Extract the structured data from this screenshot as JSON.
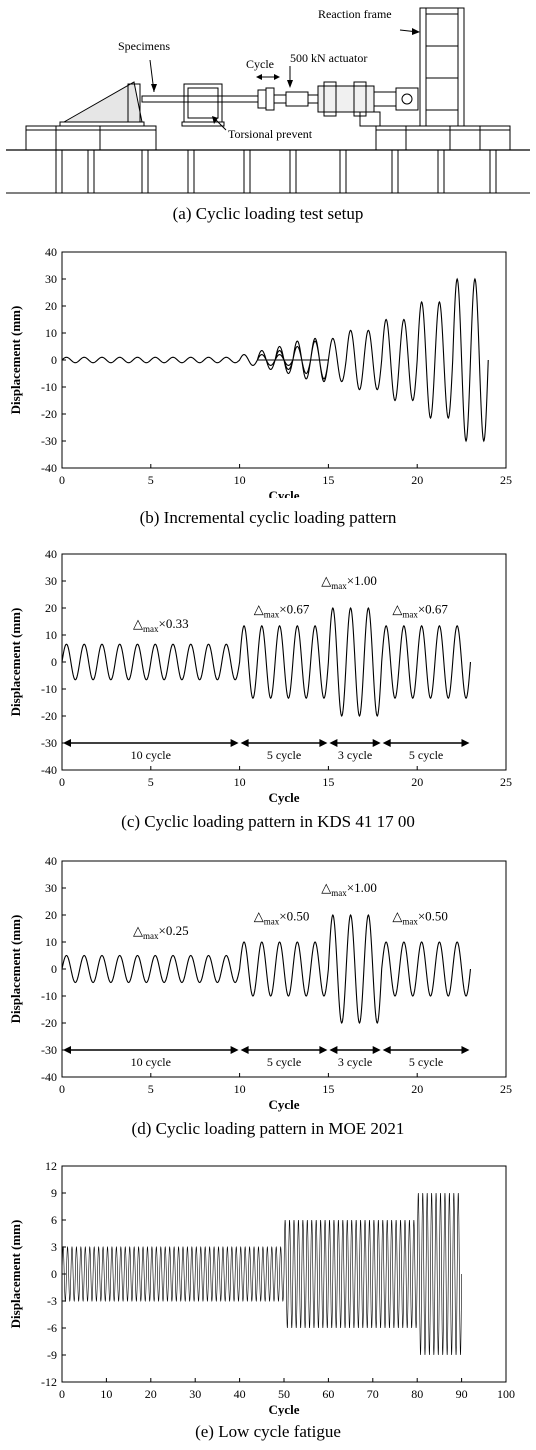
{
  "setup": {
    "caption": "(a) Cyclic loading test setup",
    "labels": {
      "reaction_frame": "Reaction frame",
      "specimens": "Specimens",
      "cycle": "Cycle",
      "actuator": "500 kN actuator",
      "torsional": "Torsional prevent"
    }
  },
  "chart_data": [
    {
      "type": "line",
      "caption": "(b) Incremental cyclic loading pattern",
      "xlabel": "Cycle",
      "ylabel": "Displacement (mm)",
      "xlim": [
        0,
        25
      ],
      "ylim": [
        -40,
        40
      ],
      "xticks": [
        "0",
        "5",
        "10",
        "15",
        "20",
        "25"
      ],
      "yticks": [
        "-40",
        "-30",
        "-20",
        "-10",
        "0",
        "10",
        "20",
        "30",
        "40"
      ],
      "groups": [
        {
          "amplitude": 1,
          "cycles": 10,
          "start": 0
        },
        {
          "amplitude": 2,
          "cycles": 3,
          "start": 10
        },
        {
          "amplitude": 3.5,
          "cycles": 2,
          "start": 11
        },
        {
          "amplitude": 5,
          "cycles": 2,
          "start": 12
        },
        {
          "amplitude": 7,
          "cycles": 2,
          "start": 13
        },
        {
          "amplitude": 8,
          "cycles": 2,
          "start": 14
        },
        {
          "amplitude": 11,
          "cycles": 2,
          "start": 16
        },
        {
          "amplitude": 15,
          "cycles": 2,
          "start": 18
        },
        {
          "amplitude": 21.5,
          "cycles": 2,
          "start": 20
        },
        {
          "amplitude": 30,
          "cycles": 2,
          "start": 22
        }
      ],
      "annotations": [],
      "ranges": []
    },
    {
      "type": "line",
      "caption": "(c) Cyclic loading pattern in KDS 41 17 00",
      "xlabel": "Cycle",
      "ylabel": "Displacement (mm)",
      "xlim": [
        0,
        25
      ],
      "ylim": [
        -40,
        40
      ],
      "xticks": [
        "0",
        "5",
        "10",
        "15",
        "20",
        "25"
      ],
      "yticks": [
        "-40",
        "-30",
        "-20",
        "-10",
        "0",
        "10",
        "20",
        "30",
        "40"
      ],
      "groups": [
        {
          "amplitude": 6.6,
          "cycles": 10,
          "start": 0
        },
        {
          "amplitude": 13.4,
          "cycles": 5,
          "start": 10
        },
        {
          "amplitude": 20,
          "cycles": 3,
          "start": 15
        },
        {
          "amplitude": 13.4,
          "cycles": 5,
          "start": 18
        }
      ],
      "annotations": [
        {
          "x": 4,
          "y": 14,
          "base": "△",
          "sub": "max",
          "text": "×0.33"
        },
        {
          "x": 10.8,
          "y": 19.5,
          "base": "△",
          "sub": "max",
          "text": "×0.67"
        },
        {
          "x": 14.6,
          "y": 30,
          "base": "△",
          "sub": "max",
          "text": "×1.00"
        },
        {
          "x": 18.6,
          "y": 19.5,
          "base": "△",
          "sub": "max",
          "text": "×0.67"
        }
      ],
      "ranges": [
        {
          "x1": 0,
          "x2": 10,
          "label": "10 cycle"
        },
        {
          "x1": 10,
          "x2": 15,
          "label": "5 cycle"
        },
        {
          "x1": 15,
          "x2": 18,
          "label": "3 cycle"
        },
        {
          "x1": 18,
          "x2": 23,
          "label": "5 cycle"
        }
      ]
    },
    {
      "type": "line",
      "caption": "(d) Cyclic loading pattern in MOE 2021",
      "xlabel": "Cycle",
      "ylabel": "Displacement (mm)",
      "xlim": [
        0,
        25
      ],
      "ylim": [
        -40,
        40
      ],
      "xticks": [
        "0",
        "5",
        "10",
        "15",
        "20",
        "25"
      ],
      "yticks": [
        "-40",
        "-30",
        "-20",
        "-10",
        "0",
        "10",
        "20",
        "30",
        "40"
      ],
      "groups": [
        {
          "amplitude": 5,
          "cycles": 10,
          "start": 0
        },
        {
          "amplitude": 10,
          "cycles": 5,
          "start": 10
        },
        {
          "amplitude": 20,
          "cycles": 3,
          "start": 15
        },
        {
          "amplitude": 10,
          "cycles": 5,
          "start": 18
        }
      ],
      "annotations": [
        {
          "x": 4,
          "y": 14,
          "base": "△",
          "sub": "max",
          "text": "×0.25"
        },
        {
          "x": 10.8,
          "y": 19.5,
          "base": "△",
          "sub": "max",
          "text": "×0.50"
        },
        {
          "x": 14.6,
          "y": 30,
          "base": "△",
          "sub": "max",
          "text": "×1.00"
        },
        {
          "x": 18.6,
          "y": 19.5,
          "base": "△",
          "sub": "max",
          "text": "×0.50"
        }
      ],
      "ranges": [
        {
          "x1": 0,
          "x2": 10,
          "label": "10 cycle"
        },
        {
          "x1": 10,
          "x2": 15,
          "label": "5 cycle"
        },
        {
          "x1": 15,
          "x2": 18,
          "label": "3 cycle"
        },
        {
          "x1": 18,
          "x2": 23,
          "label": "5 cycle"
        }
      ]
    },
    {
      "type": "line",
      "caption": "(e) Low cycle fatigue",
      "xlabel": "Cycle",
      "ylabel": "Displacement (mm)",
      "xlim": [
        0,
        100
      ],
      "ylim": [
        -12,
        12
      ],
      "xticks": [
        "0",
        "10",
        "20",
        "30",
        "40",
        "50",
        "60",
        "70",
        "80",
        "90",
        "100"
      ],
      "yticks": [
        "-12",
        "-9",
        "-6",
        "-3",
        "0",
        "3",
        "6",
        "9",
        "12"
      ],
      "groups": [
        {
          "amplitude": 3,
          "cycles": 50,
          "start": 0
        },
        {
          "amplitude": 6,
          "cycles": 30,
          "start": 50
        },
        {
          "amplitude": 9,
          "cycles": 10,
          "start": 80
        }
      ],
      "annotations": [],
      "ranges": []
    }
  ]
}
